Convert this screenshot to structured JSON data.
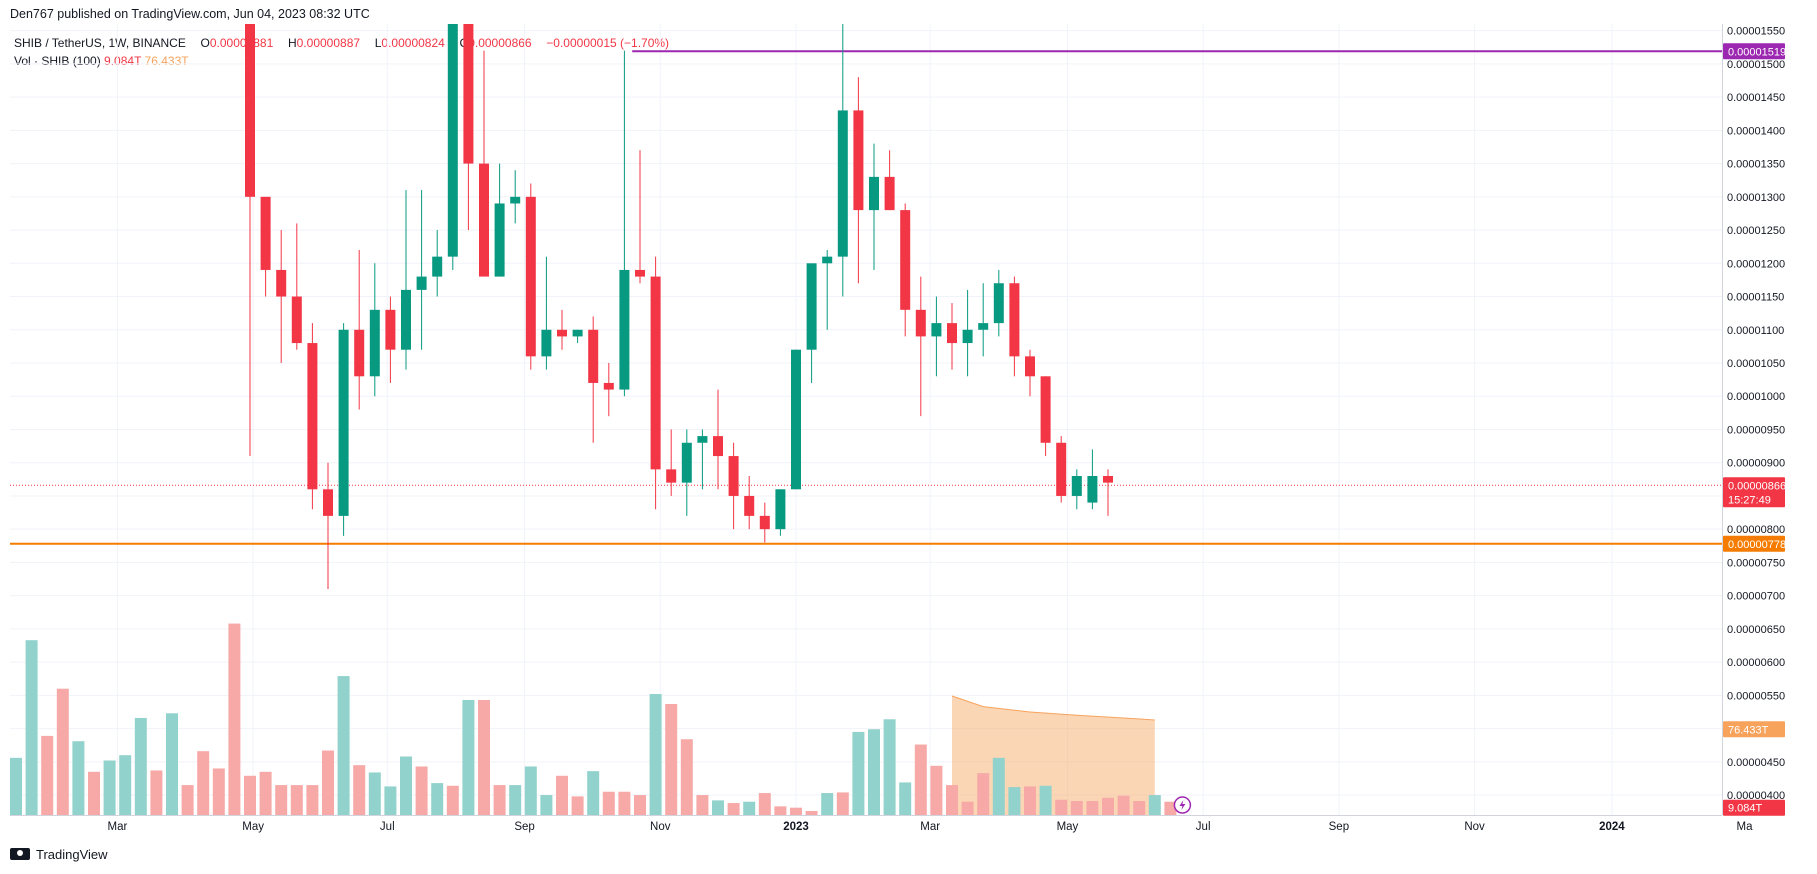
{
  "header": {
    "published_line": "Den767 published on TradingView.com, Jun 04, 2023 08:32 UTC"
  },
  "legend": {
    "symbol": "SHIB / TetherUS, 1W, BINANCE",
    "open_label": "O",
    "open": "0.00000881",
    "high_label": "H",
    "high": "0.00000887",
    "low_label": "L",
    "low": "0.00000824",
    "close_label": "C",
    "close": "0.00000866",
    "change": "−0.00000015 (−1.70%)",
    "vol_label": "Vol · SHIB (100)",
    "vol_value": "9.084T",
    "vol_ma": "76.433T"
  },
  "footer": {
    "brand": "TradingView"
  },
  "colors": {
    "up": "#089981",
    "down": "#f23645",
    "up_vol": "#92d2cc",
    "down_vol": "#f7a9a7",
    "resistance": "#9c27b0",
    "support": "#f57c00",
    "vol_ma": "#f7a35c"
  },
  "chart_data": {
    "type": "candlestick",
    "timeframe": "1W",
    "y_axis": {
      "range": [
        3.7e-06,
        1.56e-05
      ],
      "ticks": [
        "0.00000400",
        "0.00000450",
        "0.00000500",
        "0.00000550",
        "0.00000600",
        "0.00000650",
        "0.00000700",
        "0.00000750",
        "0.00000800",
        "0.00000850",
        "0.00000900",
        "0.00000950",
        "0.00001000",
        "0.00001050",
        "0.00001100",
        "0.00001150",
        "0.00001200",
        "0.00001250",
        "0.00001300",
        "0.00001350",
        "0.00001400",
        "0.00001450",
        "0.00001500",
        "0.00001550"
      ],
      "tick_values": [
        4e-06,
        4.5e-06,
        5e-06,
        5.5e-06,
        6e-06,
        6.5e-06,
        7e-06,
        7.5e-06,
        8e-06,
        8.5e-06,
        9e-06,
        9.5e-06,
        1e-05,
        1.05e-05,
        1.1e-05,
        1.15e-05,
        1.2e-05,
        1.25e-05,
        1.3e-05,
        1.35e-05,
        1.4e-05,
        1.45e-05,
        1.5e-05,
        1.55e-05
      ]
    },
    "x_axis": {
      "labels": [
        {
          "text": "Mar",
          "week": 7.5
        },
        {
          "text": "May",
          "week": 16.2
        },
        {
          "text": "Jul",
          "week": 24.8
        },
        {
          "text": "Sep",
          "week": 33.6
        },
        {
          "text": "Nov",
          "week": 42.3
        },
        {
          "text": "2023",
          "week": 51.0
        },
        {
          "text": "Mar",
          "week": 59.6
        },
        {
          "text": "May",
          "week": 68.4
        },
        {
          "text": "Jul",
          "week": 77.1
        },
        {
          "text": "Sep",
          "week": 85.8
        },
        {
          "text": "Nov",
          "week": 94.5
        },
        {
          "text": "2024",
          "week": 103.3
        },
        {
          "text": "Ma",
          "week": 111.8
        }
      ],
      "range_weeks": [
        0,
        112
      ]
    },
    "candles": [
      {
        "o": 1.62e-05,
        "h": 1.7e-05,
        "l": 9.1e-06,
        "c": 1.3e-05
      },
      {
        "o": 1.3e-05,
        "h": 1.3e-05,
        "l": 1.15e-05,
        "c": 1.19e-05
      },
      {
        "o": 1.19e-05,
        "h": 1.25e-05,
        "l": 1.05e-05,
        "c": 1.15e-05
      },
      {
        "o": 1.15e-05,
        "h": 1.26e-05,
        "l": 1.07e-05,
        "c": 1.08e-05
      },
      {
        "o": 1.08e-05,
        "h": 1.11e-05,
        "l": 8.3e-06,
        "c": 8.6e-06
      },
      {
        "o": 8.6e-06,
        "h": 9e-06,
        "l": 7.1e-06,
        "c": 8.2e-06
      },
      {
        "o": 8.2e-06,
        "h": 1.11e-05,
        "l": 7.9e-06,
        "c": 1.1e-05
      },
      {
        "o": 1.1e-05,
        "h": 1.22e-05,
        "l": 9.8e-06,
        "c": 1.03e-05
      },
      {
        "o": 1.03e-05,
        "h": 1.2e-05,
        "l": 1e-05,
        "c": 1.13e-05
      },
      {
        "o": 1.13e-05,
        "h": 1.15e-05,
        "l": 1.02e-05,
        "c": 1.07e-05
      },
      {
        "o": 1.07e-05,
        "h": 1.31e-05,
        "l": 1.04e-05,
        "c": 1.16e-05
      },
      {
        "o": 1.16e-05,
        "h": 1.31e-05,
        "l": 1.07e-05,
        "c": 1.18e-05
      },
      {
        "o": 1.18e-05,
        "h": 1.25e-05,
        "l": 1.15e-05,
        "c": 1.21e-05
      },
      {
        "o": 1.21e-05,
        "h": 1.75e-05,
        "l": 1.19e-05,
        "c": 1.57e-05
      },
      {
        "o": 1.57e-05,
        "h": 1.65e-05,
        "l": 1.25e-05,
        "c": 1.35e-05
      },
      {
        "o": 1.35e-05,
        "h": 1.52e-05,
        "l": 1.19e-05,
        "c": 1.18e-05
      },
      {
        "o": 1.18e-05,
        "h": 1.35e-05,
        "l": 1.18e-05,
        "c": 1.29e-05
      },
      {
        "o": 1.29e-05,
        "h": 1.34e-05,
        "l": 1.26e-05,
        "c": 1.3e-05
      },
      {
        "o": 1.3e-05,
        "h": 1.32e-05,
        "l": 1.04e-05,
        "c": 1.06e-05
      },
      {
        "o": 1.06e-05,
        "h": 1.21e-05,
        "l": 1.04e-05,
        "c": 1.1e-05
      },
      {
        "o": 1.1e-05,
        "h": 1.13e-05,
        "l": 1.07e-05,
        "c": 1.09e-05
      },
      {
        "o": 1.09e-05,
        "h": 1.1e-05,
        "l": 1.08e-05,
        "c": 1.1e-05
      },
      {
        "o": 1.1e-05,
        "h": 1.12e-05,
        "l": 9.3e-06,
        "c": 1.02e-05
      },
      {
        "o": 1.02e-05,
        "h": 1.05e-05,
        "l": 9.7e-06,
        "c": 1.01e-05
      },
      {
        "o": 1.01e-05,
        "h": 1.52e-05,
        "l": 1e-05,
        "c": 1.19e-05
      },
      {
        "o": 1.19e-05,
        "h": 1.37e-05,
        "l": 1.17e-05,
        "c": 1.18e-05
      },
      {
        "o": 1.18e-05,
        "h": 1.21e-05,
        "l": 8.3e-06,
        "c": 8.9e-06
      },
      {
        "o": 8.9e-06,
        "h": 9.5e-06,
        "l": 8.5e-06,
        "c": 8.7e-06
      },
      {
        "o": 8.7e-06,
        "h": 9.5e-06,
        "l": 8.2e-06,
        "c": 9.3e-06
      },
      {
        "o": 9.3e-06,
        "h": 9.5e-06,
        "l": 8.6e-06,
        "c": 9.4e-06
      },
      {
        "o": 9.4e-06,
        "h": 1.01e-05,
        "l": 8.6e-06,
        "c": 9.1e-06
      },
      {
        "o": 9.1e-06,
        "h": 9.3e-06,
        "l": 8e-06,
        "c": 8.5e-06
      },
      {
        "o": 8.5e-06,
        "h": 8.8e-06,
        "l": 8e-06,
        "c": 8.2e-06
      },
      {
        "o": 8.2e-06,
        "h": 8.4e-06,
        "l": 7.8e-06,
        "c": 8e-06
      },
      {
        "o": 8e-06,
        "h": 8.6e-06,
        "l": 7.9e-06,
        "c": 8.6e-06
      },
      {
        "o": 8.6e-06,
        "h": 1.07e-05,
        "l": 8.6e-06,
        "c": 1.07e-05
      },
      {
        "o": 1.07e-05,
        "h": 1.19e-05,
        "l": 1.02e-05,
        "c": 1.2e-05
      },
      {
        "o": 1.2e-05,
        "h": 1.22e-05,
        "l": 1.1e-05,
        "c": 1.21e-05
      },
      {
        "o": 1.21e-05,
        "h": 1.58e-05,
        "l": 1.15e-05,
        "c": 1.43e-05
      },
      {
        "o": 1.43e-05,
        "h": 1.48e-05,
        "l": 1.17e-05,
        "c": 1.28e-05
      },
      {
        "o": 1.28e-05,
        "h": 1.38e-05,
        "l": 1.19e-05,
        "c": 1.33e-05
      },
      {
        "o": 1.33e-05,
        "h": 1.37e-05,
        "l": 1.28e-05,
        "c": 1.28e-05
      },
      {
        "o": 1.28e-05,
        "h": 1.29e-05,
        "l": 1.09e-05,
        "c": 1.13e-05
      },
      {
        "o": 1.13e-05,
        "h": 1.18e-05,
        "l": 9.7e-06,
        "c": 1.09e-05
      },
      {
        "o": 1.09e-05,
        "h": 1.15e-05,
        "l": 1.03e-05,
        "c": 1.11e-05
      },
      {
        "o": 1.11e-05,
        "h": 1.14e-05,
        "l": 1.04e-05,
        "c": 1.08e-05
      },
      {
        "o": 1.08e-05,
        "h": 1.16e-05,
        "l": 1.03e-05,
        "c": 1.1e-05
      },
      {
        "o": 1.1e-05,
        "h": 1.17e-05,
        "l": 1.06e-05,
        "c": 1.11e-05
      },
      {
        "o": 1.11e-05,
        "h": 1.19e-05,
        "l": 1.09e-05,
        "c": 1.17e-05
      },
      {
        "o": 1.17e-05,
        "h": 1.18e-05,
        "l": 1.03e-05,
        "c": 1.06e-05
      },
      {
        "o": 1.06e-05,
        "h": 1.07e-05,
        "l": 1e-05,
        "c": 1.03e-05
      },
      {
        "o": 1.03e-05,
        "h": 1.03e-05,
        "l": 9.1e-06,
        "c": 9.3e-06
      },
      {
        "o": 9.3e-06,
        "h": 9.4e-06,
        "l": 8.4e-06,
        "c": 8.5e-06
      },
      {
        "o": 8.5e-06,
        "h": 8.9e-06,
        "l": 8.3e-06,
        "c": 8.8e-06
      },
      {
        "o": 8.4e-06,
        "h": 9.2e-06,
        "l": 8.3e-06,
        "c": 8.8e-06
      },
      {
        "o": 8.8e-06,
        "h": 8.9e-06,
        "l": 8.2e-06,
        "c": 8.7e-06
      }
    ],
    "volumes": [
      {
        "v": 4.89e-06,
        "up": false
      },
      {
        "v": 4.56e-06,
        "up": true
      },
      {
        "v": 6.33e-06,
        "up": true
      },
      {
        "v": 4.89e-06,
        "up": false
      },
      {
        "v": 5.6e-06,
        "up": false
      },
      {
        "v": 4.81e-06,
        "up": true
      },
      {
        "v": 4.35e-06,
        "up": false
      },
      {
        "v": 4.52e-06,
        "up": true
      },
      {
        "v": 4.6e-06,
        "up": true
      },
      {
        "v": 5.16e-06,
        "up": true
      },
      {
        "v": 4.37e-06,
        "up": false
      },
      {
        "v": 5.23e-06,
        "up": true
      },
      {
        "v": 4.15e-06,
        "up": false
      },
      {
        "v": 4.66e-06,
        "up": false
      },
      {
        "v": 4.4e-06,
        "up": false
      },
      {
        "v": 6.58e-06,
        "up": false
      },
      {
        "v": 4.29e-06,
        "up": false
      },
      {
        "v": 4.35e-06,
        "up": false
      },
      {
        "v": 4.15e-06,
        "up": false
      },
      {
        "v": 4.15e-06,
        "up": false
      },
      {
        "v": 4.15e-06,
        "up": false
      },
      {
        "v": 4.67e-06,
        "up": false
      },
      {
        "v": 5.79e-06,
        "up": true
      },
      {
        "v": 4.45e-06,
        "up": false
      },
      {
        "v": 4.34e-06,
        "up": true
      },
      {
        "v": 4.13e-06,
        "up": true
      },
      {
        "v": 4.58e-06,
        "up": true
      },
      {
        "v": 4.43e-06,
        "up": false
      },
      {
        "v": 4.18e-06,
        "up": true
      },
      {
        "v": 4.14e-06,
        "up": false
      },
      {
        "v": 5.43e-06,
        "up": true
      },
      {
        "v": 5.43e-06,
        "up": false
      },
      {
        "v": 4.15e-06,
        "up": false
      },
      {
        "v": 4.15e-06,
        "up": true
      },
      {
        "v": 4.43e-06,
        "up": true
      },
      {
        "v": 4e-06,
        "up": true
      },
      {
        "v": 4.29e-06,
        "up": false
      },
      {
        "v": 3.98e-06,
        "up": false
      },
      {
        "v": 4.36e-06,
        "up": true
      },
      {
        "v": 4.05e-06,
        "up": false
      },
      {
        "v": 4.05e-06,
        "up": false
      },
      {
        "v": 4e-06,
        "up": false
      },
      {
        "v": 5.52e-06,
        "up": true
      },
      {
        "v": 5.37e-06,
        "up": false
      },
      {
        "v": 4.84e-06,
        "up": false
      },
      {
        "v": 4e-06,
        "up": false
      },
      {
        "v": 3.92e-06,
        "up": true
      },
      {
        "v": 3.88e-06,
        "up": false
      },
      {
        "v": 3.9e-06,
        "up": true
      },
      {
        "v": 4.03e-06,
        "up": false
      },
      {
        "v": 3.83e-06,
        "up": false
      },
      {
        "v": 3.81e-06,
        "up": false
      },
      {
        "v": 3.76e-06,
        "up": false
      },
      {
        "v": 4.03e-06,
        "up": true
      },
      {
        "v": 4.04e-06,
        "up": false
      },
      {
        "v": 4.95e-06,
        "up": true
      },
      {
        "v": 4.99e-06,
        "up": true
      },
      {
        "v": 5.14e-06,
        "up": true
      },
      {
        "v": 4.19e-06,
        "up": true
      },
      {
        "v": 4.76e-06,
        "up": false
      },
      {
        "v": 4.44e-06,
        "up": false
      },
      {
        "v": 4.15e-06,
        "up": false
      },
      {
        "v": 3.9e-06,
        "up": false
      },
      {
        "v": 4.33e-06,
        "up": false
      },
      {
        "v": 4.56e-06,
        "up": true
      },
      {
        "v": 4.12e-06,
        "up": true
      },
      {
        "v": 4.13e-06,
        "up": false
      },
      {
        "v": 4.14e-06,
        "up": true
      },
      {
        "v": 3.93e-06,
        "up": false
      },
      {
        "v": 3.91e-06,
        "up": false
      },
      {
        "v": 3.91e-06,
        "up": false
      },
      {
        "v": 3.96e-06,
        "up": false
      },
      {
        "v": 3.99e-06,
        "up": false
      },
      {
        "v": 3.91e-06,
        "up": false
      },
      {
        "v": 4e-06,
        "up": true
      },
      {
        "v": 3.9e-06,
        "up": false
      }
    ],
    "volume_ma": [
      {
        "week": 61,
        "v": 5.49e-06
      },
      {
        "week": 63,
        "v": 5.33e-06
      },
      {
        "week": 66,
        "v": 5.25e-06
      },
      {
        "week": 69,
        "v": 5.2e-06
      },
      {
        "week": 72,
        "v": 5.16e-06
      },
      {
        "week": 74,
        "v": 5.13e-06
      }
    ],
    "horizontal_lines": [
      {
        "name": "resistance",
        "value": 1.519e-05,
        "label": "0.00001519",
        "from_week": 40.5
      },
      {
        "name": "support",
        "value": 7.78e-06,
        "label": "0.00000778",
        "from_week": 0
      }
    ],
    "last_price": {
      "value": 8.66e-06,
      "label": "0.00000866",
      "countdown": "15:27:49"
    },
    "vol_ma_badge": {
      "value": 4.99e-06,
      "label": "76.433T"
    },
    "vol_badge": {
      "value": 3.81e-06,
      "label": "9.084T"
    }
  }
}
